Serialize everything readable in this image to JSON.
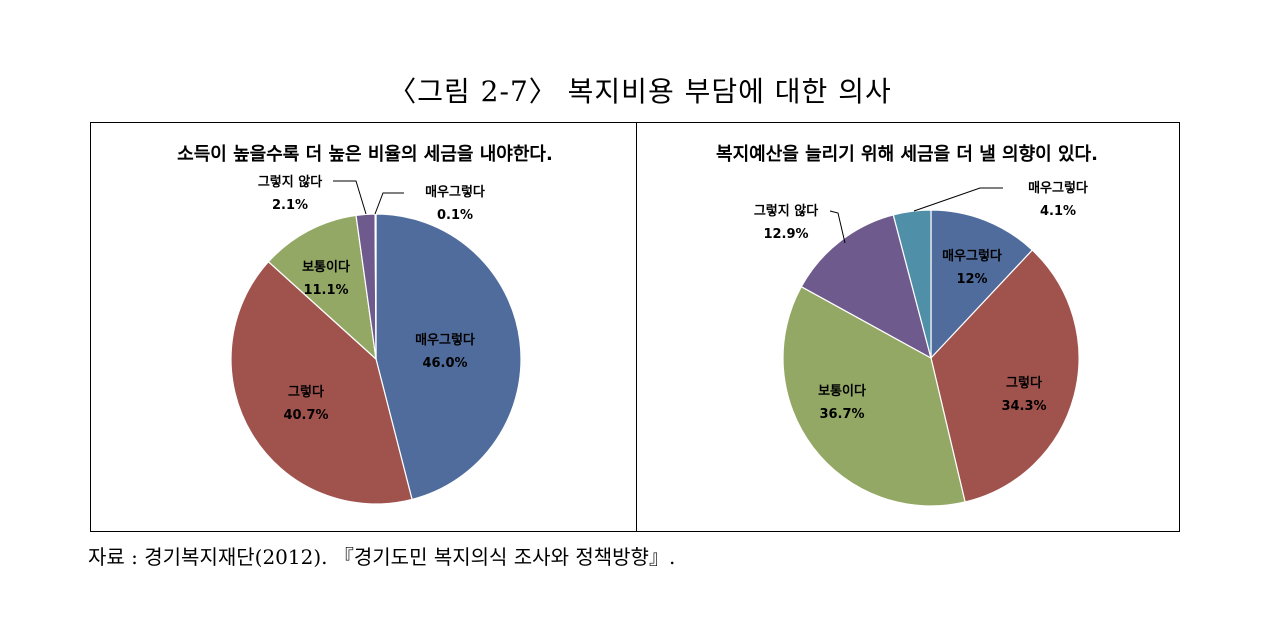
{
  "figure": {
    "title": "〈그림 2-7〉 복지비용 부담에 대한 의사",
    "source": "자료 : 경기복지재단(2012). 『경기도민 복지의식 조사와 정책방향』."
  },
  "chart_data": [
    {
      "type": "pie",
      "title": "소득이 높을수록 더 높은 비율의 세금을 내야한다.",
      "start_angle": 0,
      "slices": [
        {
          "label": "매우그렇다",
          "value": 46.0,
          "value_text": "46.0%",
          "color": "#4F6C9C"
        },
        {
          "label": "그렇다",
          "value": 40.7,
          "value_text": "40.7%",
          "color": "#A0524D"
        },
        {
          "label": "보통이다",
          "value": 11.1,
          "value_text": "11.1%",
          "color": "#93A865"
        },
        {
          "label": "그렇지 않다",
          "value": 2.1,
          "value_text": "2.1%",
          "color": "#6E5A8C"
        },
        {
          "label": "매우그렇다",
          "value": 0.1,
          "value_text": "0.1%",
          "color": "#4F8FA8"
        }
      ]
    },
    {
      "type": "pie",
      "title": "복지예산을 늘리기 위해 세금을 더 낼 의향이 있다.",
      "start_angle": 0,
      "slices": [
        {
          "label": "매우그렇다",
          "value": 12,
          "value_text": "12%",
          "color": "#4F6C9C"
        },
        {
          "label": "그렇다",
          "value": 34.3,
          "value_text": "34.3%",
          "color": "#A0524D"
        },
        {
          "label": "보통이다",
          "value": 36.7,
          "value_text": "36.7%",
          "color": "#93A865"
        },
        {
          "label": "그렇지 않다",
          "value": 12.9,
          "value_text": "12.9%",
          "color": "#6E5A8C"
        },
        {
          "label": "매우그렇다",
          "value": 4.1,
          "value_text": "4.1%",
          "color": "#4F8FA8"
        }
      ]
    }
  ]
}
